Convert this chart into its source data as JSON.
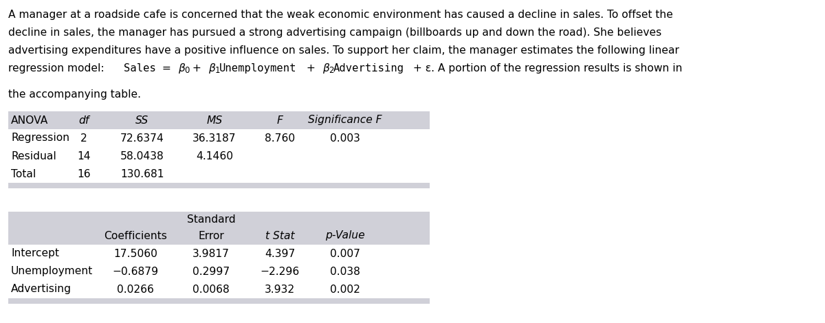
{
  "description_lines": [
    "A manager at a roadside cafe is concerned that the weak economic environment has caused a decline in sales. To offset the",
    "decline in sales, the manager has pursued a strong advertising campaign (billboards up and down the road). She believes",
    "advertising expenditures have a positive influence on sales. To support her claim, the manager estimates the following linear",
    "the accompanying table."
  ],
  "regression_line_prefix": "regression model: ",
  "regression_line_parts": [
    {
      "text": "Sales",
      "mono": true
    },
    {
      "text": " = ",
      "mono": false
    },
    {
      "text": "β",
      "mono": false,
      "style": "italic"
    },
    {
      "text": "0",
      "mono": false,
      "sub": true
    },
    {
      "text": " + ",
      "mono": false
    },
    {
      "text": "β",
      "mono": false,
      "style": "italic"
    },
    {
      "text": "1",
      "mono": false,
      "sub": true
    },
    {
      "text": "Unemployment",
      "mono": true
    },
    {
      "text": " + ",
      "mono": false
    },
    {
      "text": "β",
      "mono": false,
      "style": "italic"
    },
    {
      "text": "2",
      "mono": false,
      "sub": true
    },
    {
      "text": "Advertising",
      "mono": true
    },
    {
      "text": " + ε. A portion of the regression results is shown in",
      "mono": false
    }
  ],
  "anova_headers": [
    "ANOVA",
    "df",
    "SS",
    "MS",
    "F",
    "Significance F"
  ],
  "anova_headers_italic": [
    false,
    true,
    true,
    true,
    true,
    true
  ],
  "anova_rows": [
    [
      "Regression",
      "2",
      "72.6374",
      "36.3187",
      "8.760",
      "0.003"
    ],
    [
      "Residual",
      "14",
      "58.0438",
      "4.1460",
      "",
      ""
    ],
    [
      "Total",
      "16",
      "130.681",
      "",
      "",
      ""
    ]
  ],
  "coef_header_row1": [
    "",
    "",
    "Standard",
    "",
    ""
  ],
  "coef_header_row2": [
    "",
    "Coefficients",
    "Error",
    "t Stat",
    "p-Value"
  ],
  "coef_header_italic": [
    false,
    false,
    false,
    true,
    true
  ],
  "coef_rows": [
    [
      "Intercept",
      "17.5060",
      "3.9817",
      "4.397",
      "0.007"
    ],
    [
      "Unemployment",
      "−0.6879",
      "0.2997",
      "−2.296",
      "0.038"
    ],
    [
      "Advertising",
      "0.0266",
      "0.0068",
      "3.932",
      "0.002"
    ]
  ],
  "table_bg": "#d0d0d8",
  "row_bg": "#ffffff",
  "font_size": 11.2,
  "fig_width": 12.0,
  "fig_height": 4.7,
  "dpi": 100
}
